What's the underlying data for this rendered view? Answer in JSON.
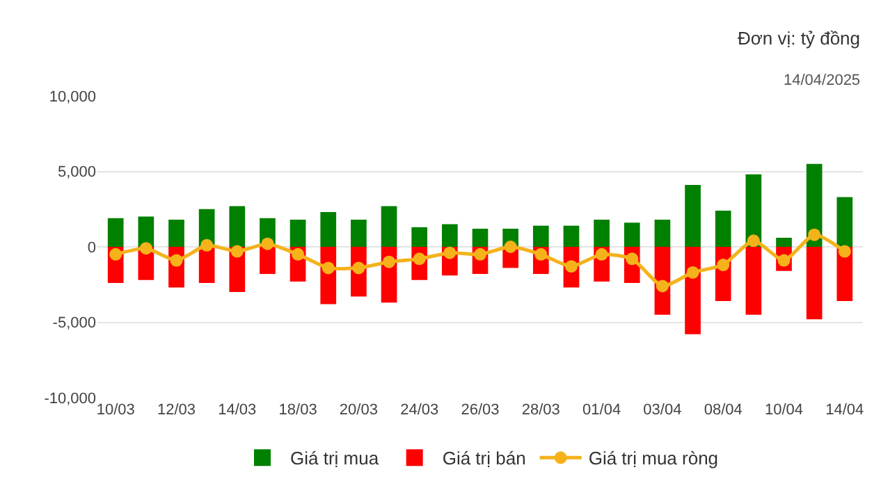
{
  "chart_data": {
    "type": "bar",
    "stacked": true,
    "annotations": [
      "Đơn vị: tỷ đồng",
      "14/04/2025"
    ],
    "categories": [
      "10/03",
      null,
      "12/03",
      null,
      "14/03",
      null,
      "18/03",
      null,
      "20/03",
      null,
      "24/03",
      null,
      "26/03",
      null,
      "28/03",
      null,
      "01/04",
      null,
      "03/04",
      null,
      "08/04",
      null,
      "10/04",
      null,
      "14/04"
    ],
    "series": [
      {
        "name": "Giá trị mua",
        "color": "#008000",
        "values": [
          1900,
          2000,
          1800,
          2500,
          2700,
          1900,
          1800,
          2300,
          1800,
          2700,
          1300,
          1500,
          1200,
          1200,
          1400,
          1400,
          1800,
          1600,
          1800,
          4100,
          2400,
          4800,
          600,
          5500,
          3300
        ]
      },
      {
        "name": "Giá trị bán",
        "color": "#ff0000",
        "values": [
          -2400,
          -2200,
          -2700,
          -2400,
          -3000,
          -1800,
          -2300,
          -3800,
          -3300,
          -3700,
          -2200,
          -1900,
          -1800,
          -1400,
          -1800,
          -2700,
          -2300,
          -2400,
          -4500,
          -5800,
          -3600,
          -4500,
          -1600,
          -4800,
          -3600
        ]
      },
      {
        "name": "Giá trị mua ròng",
        "type": "line",
        "color": "#f5b21b",
        "marker": "circle",
        "line_style": "solid",
        "values": [
          -500,
          -100,
          -900,
          100,
          -300,
          200,
          -500,
          -1400,
          -1400,
          -1000,
          -800,
          -400,
          -500,
          0,
          -500,
          -1300,
          -500,
          -800,
          -2600,
          -1700,
          -1200,
          400,
          -900,
          800,
          -300
        ]
      }
    ],
    "ylim": [
      -10000,
      10000
    ],
    "yticks": [
      {
        "value": -10000,
        "label": "-10,000"
      },
      {
        "value": -5000,
        "label": "-5,000"
      },
      0,
      {
        "value": 5000,
        "label": "5,000"
      },
      {
        "value": 10000,
        "label": "10,000"
      }
    ],
    "grid": "y",
    "legend": "bottom"
  }
}
